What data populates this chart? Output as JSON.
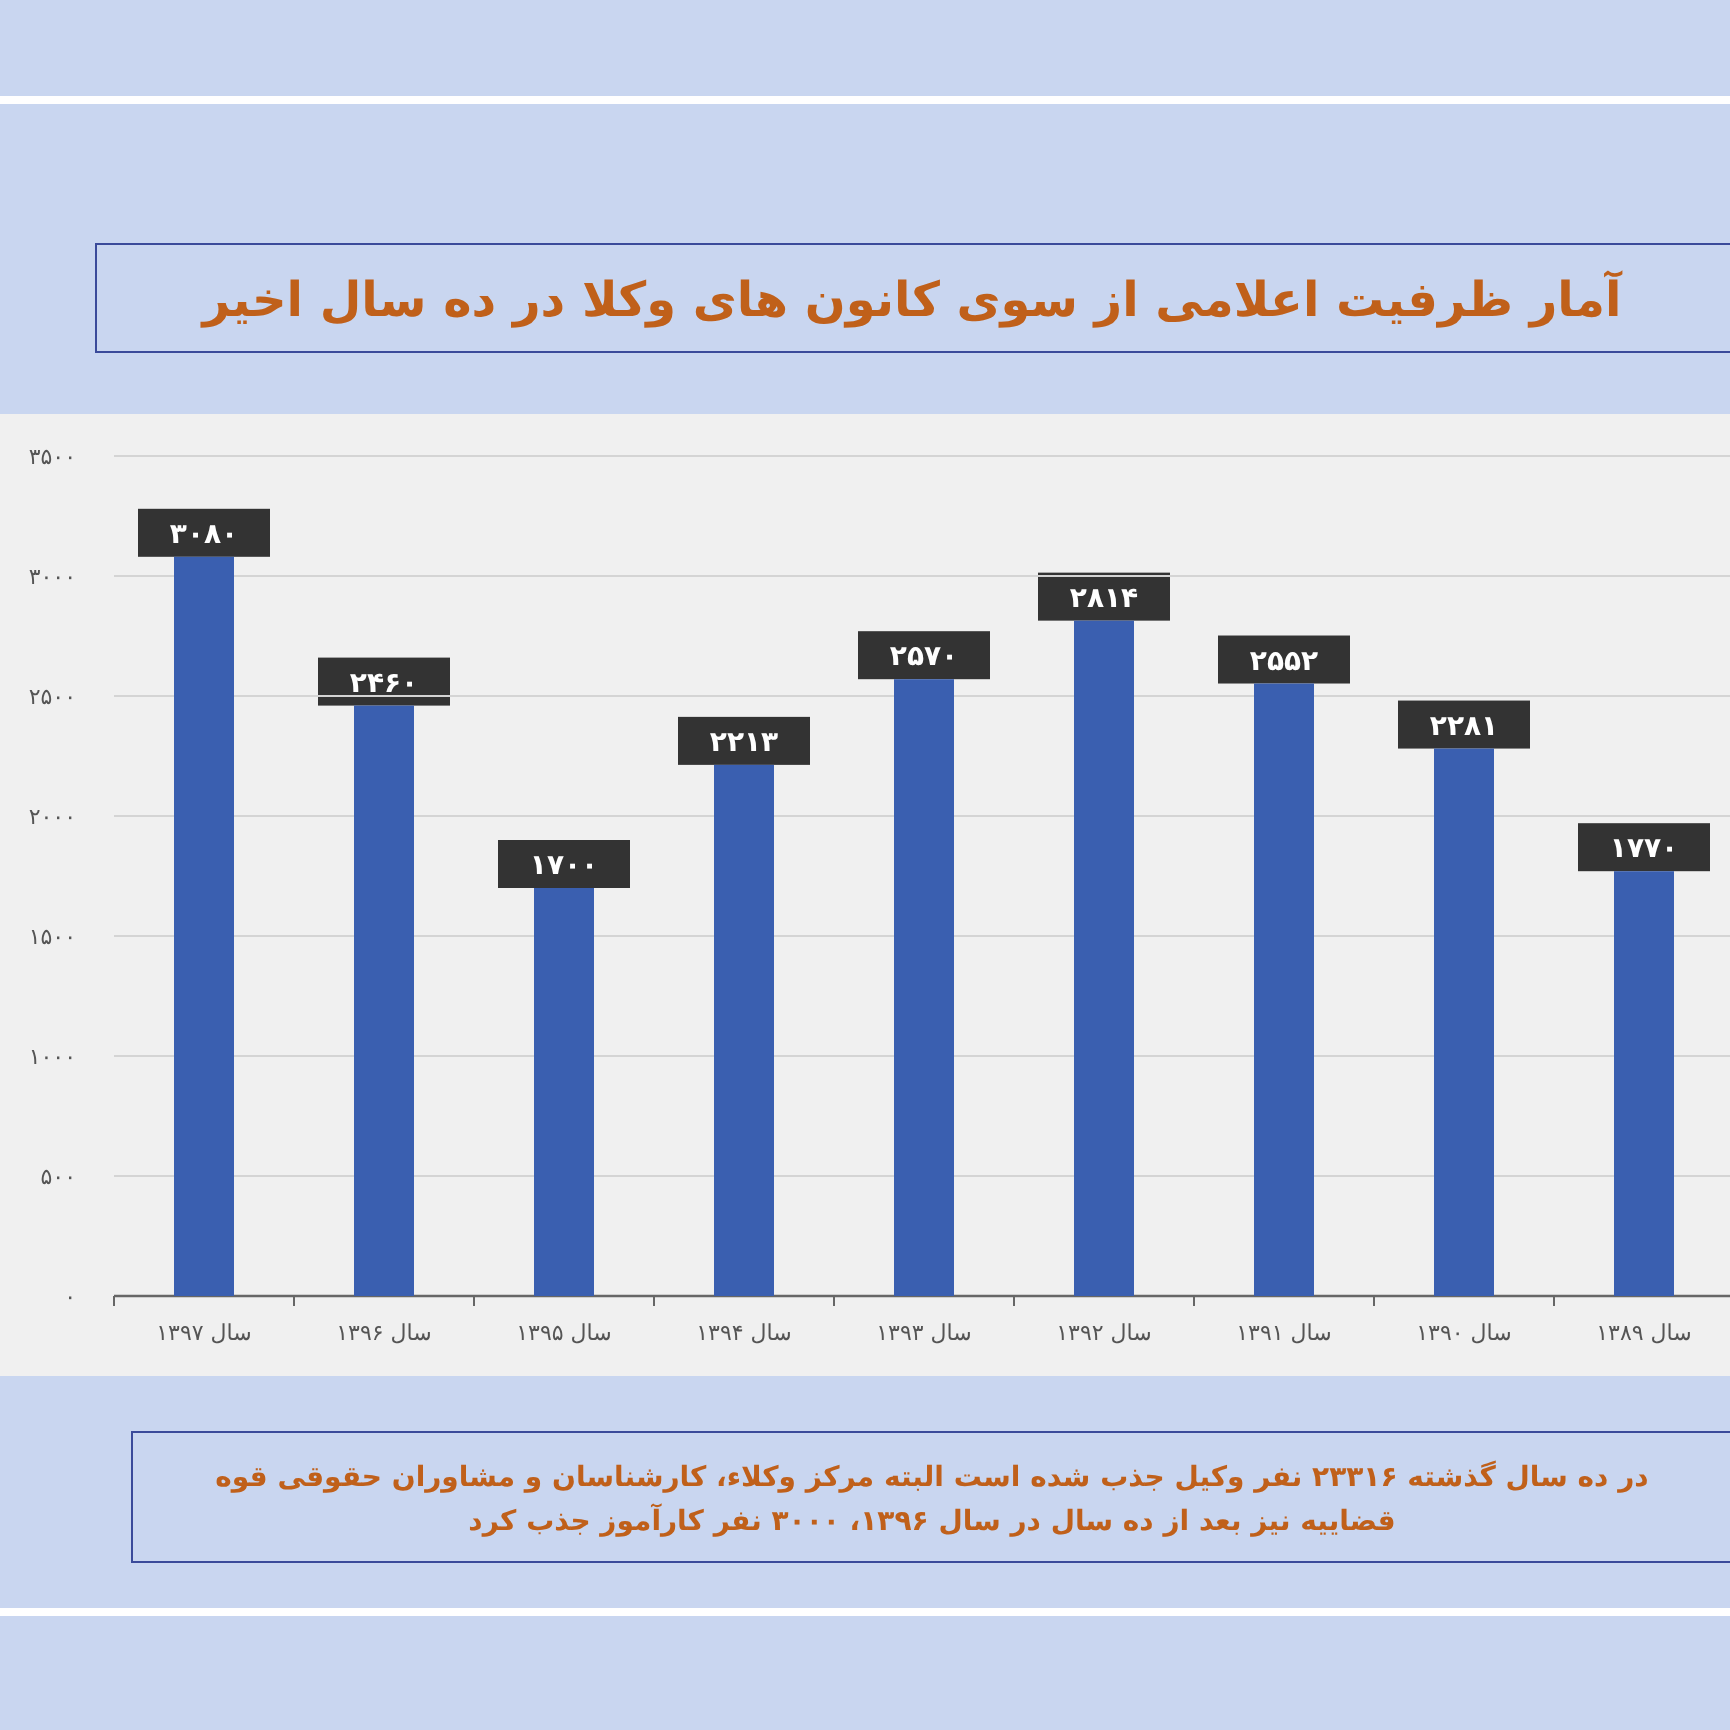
{
  "chart_data": {
    "type": "bar",
    "title": "آمار ظرفیت اعلامی از سوی کانون های وکلا در ده سال اخیر",
    "categories": [
      "سال ۱۳۹۷",
      "سال ۱۳۹۶",
      "سال ۱۳۹۵",
      "سال ۱۳۹۴",
      "سال ۱۳۹۳",
      "سال ۱۳۹۲",
      "سال ۱۳۹۱",
      "سال ۱۳۹۰",
      "سال ۱۳۸۹"
    ],
    "values": [
      3080,
      2460,
      1700,
      2213,
      2570,
      2814,
      2552,
      2281,
      1770
    ],
    "value_labels": [
      "۳۰۸۰",
      "۲۴۶۰",
      "۱۷۰۰",
      "۲۲۱۳",
      "۲۵۷۰",
      "۲۸۱۴",
      "۲۵۵۲",
      "۲۲۸۱",
      "۱۷۷۰"
    ],
    "color": "#3a5fb0",
    "ylim": [
      0,
      3500
    ],
    "yticks": [
      {
        "value": 0,
        "label": "۰"
      },
      {
        "value": 500,
        "label": "۵۰۰"
      },
      {
        "value": 1000,
        "label": "۱۰۰۰"
      },
      {
        "value": 1500,
        "label": "۱۵۰۰"
      },
      {
        "value": 2000,
        "label": "۲۰۰۰"
      },
      {
        "value": 2500,
        "label": "۲۵۰۰"
      },
      {
        "value": 3000,
        "label": "۳۰۰۰"
      },
      {
        "value": 3500,
        "label": "۳۵۰۰"
      }
    ],
    "grid": "y",
    "annotations": [
      "در ده سال گذشته ۲۳۳۱۶ نفر وکیل جذب شده است البته مرکز وکلاء، کارشناسان و مشاوران حقوقی قوه",
      "قضاییه نیز بعد از ده سال در سال ۱۳۹۶، ۳۰۰۰ نفر کارآموز جذب کرد"
    ]
  }
}
